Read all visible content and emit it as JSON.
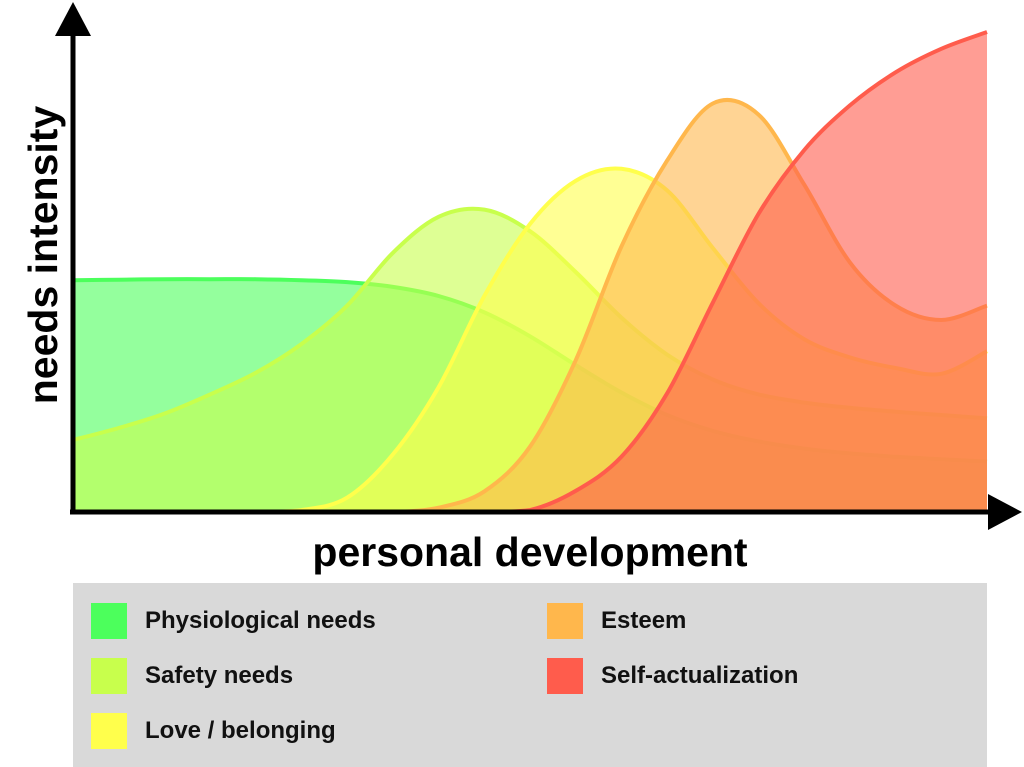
{
  "chart_data": {
    "type": "area",
    "xlabel": "personal development",
    "ylabel": "needs intensity",
    "xlim": [
      0,
      100
    ],
    "ylim": [
      0,
      100
    ],
    "grid": false,
    "legend_position": "bottom",
    "x": [
      0,
      5,
      10,
      15,
      20,
      25,
      30,
      35,
      40,
      45,
      50,
      55,
      60,
      65,
      70,
      75,
      80,
      85,
      90,
      95,
      100
    ],
    "series": [
      {
        "name": "Physiological needs",
        "color": "#4cff5c",
        "values": [
          48.3,
          48.4,
          48.5,
          48.5,
          48.5,
          48.3,
          47.9,
          46.9,
          45.0,
          41.6,
          36.6,
          30.6,
          24.9,
          20.2,
          16.9,
          14.7,
          13.2,
          12.2,
          11.5,
          11.0,
          10.5
        ]
      },
      {
        "name": "Safety needs",
        "color": "#c8ff4c",
        "values": [
          15.0,
          17.5,
          20.5,
          24.5,
          29.0,
          35.0,
          43.0,
          54.0,
          61.5,
          63.0,
          58.5,
          50.0,
          40.5,
          32.8,
          27.6,
          24.5,
          22.8,
          21.7,
          20.9,
          20.2,
          19.5
        ]
      },
      {
        "name": "Love / belonging",
        "color": "#ffff4c",
        "values": [
          0,
          0,
          0,
          0,
          0,
          0.4,
          3.0,
          12.0,
          26.0,
          45.0,
          60.0,
          69.0,
          71.5,
          67.0,
          55.0,
          43.5,
          36.0,
          32.2,
          30.0,
          28.8,
          33.5
        ]
      },
      {
        "name": "Esteem",
        "color": "#ffb74c",
        "values": [
          0,
          0,
          0,
          0,
          0,
          0,
          0,
          0,
          0.9,
          4.3,
          13.6,
          31.6,
          55.3,
          73.2,
          85.1,
          82.8,
          68.2,
          52.0,
          43.0,
          40.0,
          43.0
        ]
      },
      {
        "name": "Self-actualization",
        "color": "#ff5c4c",
        "values": [
          0,
          0,
          0,
          0,
          0,
          0,
          0,
          0,
          0,
          0,
          0.4,
          4.4,
          11.5,
          24.7,
          43.6,
          62.1,
          75.4,
          84.7,
          91.6,
          96.5,
          100.0
        ]
      }
    ]
  },
  "legend": {
    "items": [
      {
        "label": "Physiological needs",
        "color": "#4cff5c"
      },
      {
        "label": "Safety needs",
        "color": "#c8ff4c"
      },
      {
        "label": "Love / belonging",
        "color": "#ffff4c"
      },
      {
        "label": "Esteem",
        "color": "#ffb74c"
      },
      {
        "label": "Self-actualization",
        "color": "#ff5c4c"
      }
    ]
  }
}
